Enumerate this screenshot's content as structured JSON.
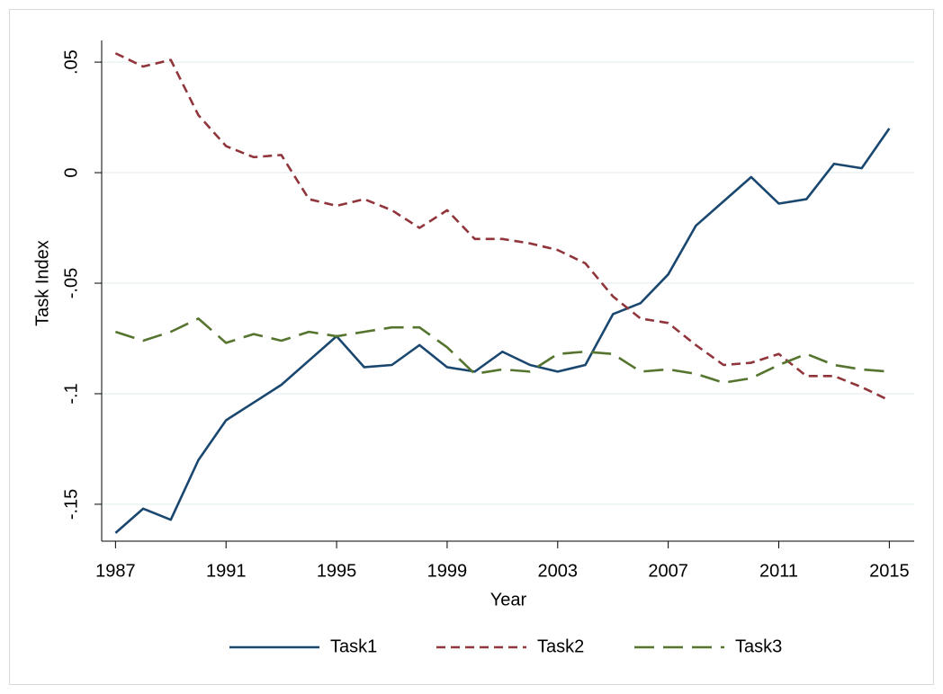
{
  "chart_data": {
    "type": "line",
    "x_label": "Year",
    "y_label": "Task Index",
    "x": [
      1987,
      1988,
      1989,
      1990,
      1991,
      1992,
      1993,
      1994,
      1995,
      1996,
      1997,
      1998,
      1999,
      2000,
      2001,
      2002,
      2003,
      2004,
      2005,
      2006,
      2007,
      2008,
      2009,
      2010,
      2011,
      2012,
      2013,
      2014,
      2015
    ],
    "series": [
      {
        "name": "Task1",
        "color": "#1a476f",
        "values": [
          -0.163,
          -0.152,
          -0.157,
          -0.13,
          -0.112,
          -0.104,
          -0.096,
          -0.085,
          -0.074,
          -0.088,
          -0.087,
          -0.078,
          -0.088,
          -0.09,
          -0.081,
          -0.087,
          -0.09,
          -0.087,
          -0.064,
          -0.059,
          -0.046,
          -0.024,
          -0.013,
          -0.002,
          -0.014,
          -0.012,
          0.004,
          0.002,
          0.02
        ]
      },
      {
        "name": "Task2",
        "color": "#90353b",
        "values": [
          0.054,
          0.048,
          0.051,
          0.026,
          0.012,
          0.007,
          0.008,
          -0.012,
          -0.015,
          -0.012,
          -0.017,
          -0.025,
          -0.017,
          -0.03,
          -0.03,
          -0.032,
          -0.035,
          -0.041,
          -0.056,
          -0.066,
          -0.068,
          -0.078,
          -0.087,
          -0.086,
          -0.082,
          -0.092,
          -0.092,
          -0.097,
          -0.103
        ]
      },
      {
        "name": "Task3",
        "color": "#55752f",
        "values": [
          -0.072,
          -0.076,
          -0.072,
          -0.066,
          -0.077,
          -0.073,
          -0.076,
          -0.072,
          -0.074,
          -0.072,
          -0.07,
          -0.07,
          -0.079,
          -0.091,
          -0.089,
          -0.09,
          -0.082,
          -0.081,
          -0.082,
          -0.09,
          -0.089,
          -0.091,
          -0.095,
          -0.093,
          -0.087,
          -0.082,
          -0.087,
          -0.089,
          -0.09
        ]
      }
    ],
    "xlim": [
      1986.5,
      2015.9
    ],
    "xticks": [
      1987,
      1991,
      1995,
      1999,
      2003,
      2007,
      2011,
      2015
    ],
    "ylim": [
      -0.1667,
      0.0598
    ],
    "yticks": [
      {
        "value": -0.15,
        "label": "-.15"
      },
      {
        "value": -0.1,
        "label": "-.1"
      },
      {
        "value": -0.05,
        "label": "-.05"
      },
      0,
      {
        "value": 0.05,
        "label": ".05"
      }
    ],
    "grid": true,
    "legend": "bottom"
  }
}
